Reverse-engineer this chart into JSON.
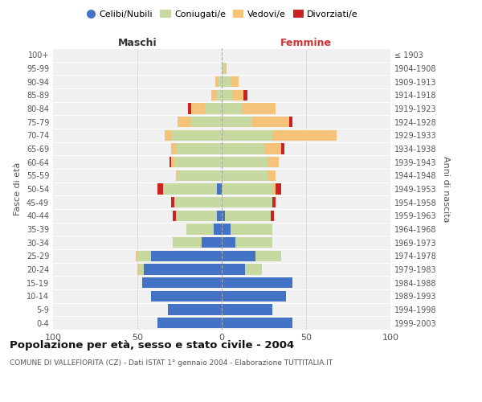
{
  "age_groups": [
    "0-4",
    "5-9",
    "10-14",
    "15-19",
    "20-24",
    "25-29",
    "30-34",
    "35-39",
    "40-44",
    "45-49",
    "50-54",
    "55-59",
    "60-64",
    "65-69",
    "70-74",
    "75-79",
    "80-84",
    "85-89",
    "90-94",
    "95-99",
    "100+"
  ],
  "birth_years": [
    "1999-2003",
    "1994-1998",
    "1989-1993",
    "1984-1988",
    "1979-1983",
    "1974-1978",
    "1969-1973",
    "1964-1968",
    "1959-1963",
    "1954-1958",
    "1949-1953",
    "1944-1948",
    "1939-1943",
    "1934-1938",
    "1929-1933",
    "1924-1928",
    "1919-1923",
    "1914-1918",
    "1909-1913",
    "1904-1908",
    "≤ 1903"
  ],
  "maschi": {
    "celibi": [
      38,
      32,
      42,
      47,
      46,
      42,
      12,
      5,
      3,
      0,
      3,
      0,
      0,
      0,
      0,
      0,
      0,
      0,
      0,
      0,
      0
    ],
    "coniugati": [
      0,
      0,
      0,
      0,
      3,
      8,
      17,
      16,
      24,
      28,
      32,
      26,
      28,
      27,
      30,
      18,
      10,
      3,
      2,
      0,
      0
    ],
    "vedovi": [
      0,
      0,
      0,
      0,
      1,
      1,
      0,
      0,
      0,
      0,
      0,
      1,
      2,
      3,
      4,
      8,
      8,
      3,
      2,
      0,
      0
    ],
    "divorziati": [
      0,
      0,
      0,
      0,
      0,
      0,
      0,
      0,
      2,
      2,
      3,
      0,
      1,
      0,
      0,
      0,
      2,
      0,
      0,
      0,
      0
    ]
  },
  "femmine": {
    "nubili": [
      42,
      30,
      38,
      42,
      14,
      20,
      8,
      5,
      2,
      0,
      0,
      0,
      0,
      0,
      0,
      0,
      0,
      0,
      0,
      0,
      0
    ],
    "coniugate": [
      0,
      0,
      0,
      0,
      10,
      15,
      22,
      25,
      27,
      30,
      30,
      27,
      27,
      25,
      30,
      18,
      12,
      6,
      5,
      2,
      0
    ],
    "vedove": [
      0,
      0,
      0,
      0,
      0,
      0,
      0,
      0,
      0,
      0,
      2,
      5,
      7,
      10,
      38,
      22,
      20,
      7,
      5,
      1,
      0
    ],
    "divorziate": [
      0,
      0,
      0,
      0,
      0,
      0,
      0,
      0,
      2,
      2,
      3,
      0,
      0,
      2,
      0,
      2,
      0,
      2,
      0,
      0,
      0
    ]
  },
  "colors": {
    "celibi_nubili": "#4472c4",
    "coniugati": "#c5d9a0",
    "vedovi": "#f5c27a",
    "divorziati": "#cc2222"
  },
  "xlim": 100,
  "title": "Popolazione per età, sesso e stato civile - 2004",
  "subtitle": "COMUNE DI VALLEFIORITA (CZ) - Dati ISTAT 1° gennaio 2004 - Elaborazione TUTTITALIA.IT",
  "xlabel_maschi": "Maschi",
  "xlabel_femmine": "Femmine",
  "ylabel_left": "Fasce di età",
  "ylabel_right": "Anni di nascita",
  "legend_labels": [
    "Celibi/Nubili",
    "Coniugati/e",
    "Vedovi/e",
    "Divorziati/e"
  ],
  "background_color": "#ffffff",
  "plot_bg_color": "#f0f0f0",
  "grid_color": "#ffffff"
}
